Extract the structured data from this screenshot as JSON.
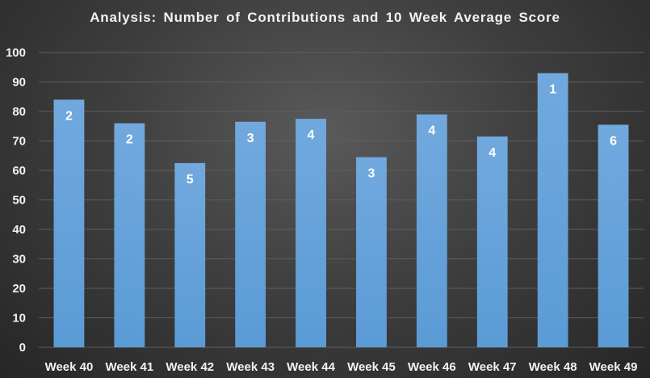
{
  "chart_data": {
    "type": "bar",
    "title": "Analysis: Number of Contributions and 10 Week Average Score",
    "categories": [
      "Week 40",
      "Week 41",
      "Week 42",
      "Week 43",
      "Week 44",
      "Week 45",
      "Week 46",
      "Week 47",
      "Week 48",
      "Week 49"
    ],
    "values": [
      84,
      76,
      62.5,
      76.5,
      77.5,
      64.5,
      79,
      71.5,
      93,
      75.5
    ],
    "data_labels": [
      "2",
      "2",
      "5",
      "3",
      "4",
      "3",
      "4",
      "4",
      "1",
      "6"
    ],
    "ylim": [
      0,
      100
    ],
    "yticks": [
      0,
      10,
      20,
      30,
      40,
      50,
      60,
      70,
      80,
      90,
      100
    ],
    "grid": true,
    "xlabel": "",
    "ylabel": "",
    "colors": {
      "bar": "#5b9bd5",
      "bar_light": "#71a9de",
      "grid": "#5e5e5e",
      "text": "#f2f2f2"
    }
  }
}
